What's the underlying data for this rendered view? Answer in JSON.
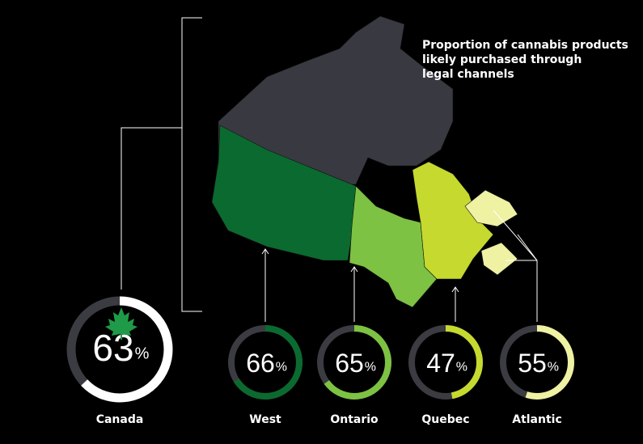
{
  "chart_data": {
    "type": "donut",
    "title": "Proportion of cannabis products likely purchased through legal channels",
    "unit": "%",
    "categories": [
      "Canada",
      "West",
      "Ontario",
      "Quebec",
      "Atlantic"
    ],
    "values": [
      63,
      66,
      65,
      47,
      55
    ],
    "colors": [
      "#ffffff",
      "#0b6a2f",
      "#7dc243",
      "#c6d92f",
      "#eff1a3"
    ]
  }
}
